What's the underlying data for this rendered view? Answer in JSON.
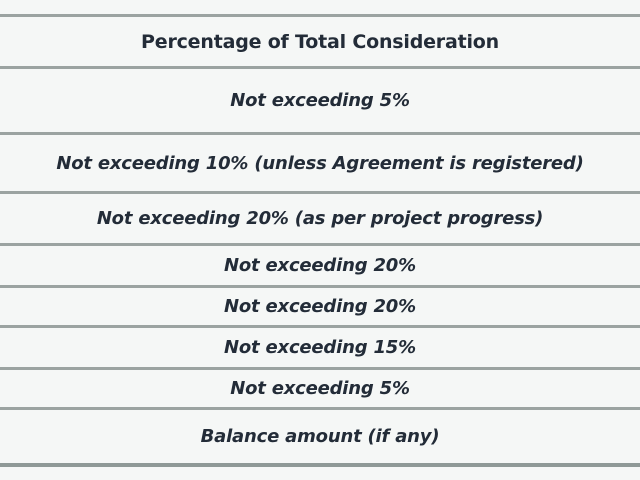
{
  "page": {
    "background_color": "#f5f7f6",
    "rule_color": "#9ba3a1",
    "text_color": "#232c38"
  },
  "table": {
    "title": "Percentage of Total Consideration",
    "rows": [
      "Not exceeding 5%",
      "Not exceeding 10% (unless Agreement is registered)",
      "Not exceeding 20% (as per project progress)",
      "Not exceeding 20%",
      "Not exceeding 20%",
      "Not exceeding 15%",
      "Not exceeding 5%",
      "Balance amount (if any)"
    ]
  }
}
